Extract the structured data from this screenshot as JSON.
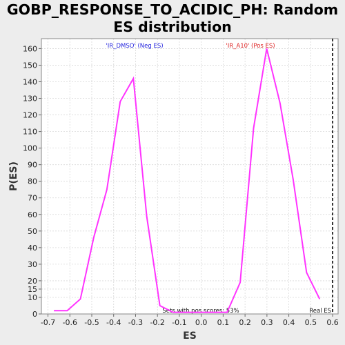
{
  "chart_data": {
    "type": "line",
    "title": "GOBP_RESPONSE_TO_ACIDIC_PH: Random ES distribution",
    "xlabel": "ES",
    "ylabel": "P(ES)",
    "xlim": [
      -0.73,
      0.625
    ],
    "ylim": [
      0,
      166
    ],
    "x_ticks": [
      "-0.7",
      "-0.6",
      "-0.5",
      "-0.4",
      "-0.3",
      "-0.2",
      "-0.1",
      "0.0",
      "0.1",
      "0.2",
      "0.3",
      "0.4",
      "0.5",
      "0.6"
    ],
    "y_ticks": [
      "0",
      "10",
      "15",
      "20",
      "30",
      "40",
      "50",
      "60",
      "70",
      "80",
      "90",
      "100",
      "110",
      "120",
      "130",
      "140",
      "150",
      "160"
    ],
    "grid": true,
    "series": [
      {
        "color": "#ff33ff",
        "x": [
          -0.673,
          -0.612,
          -0.552,
          -0.491,
          -0.431,
          -0.37,
          -0.31,
          -0.249,
          -0.189,
          -0.128,
          0.118,
          0.178,
          0.239,
          0.299,
          0.36,
          0.42,
          0.481,
          0.541
        ],
        "y": [
          2,
          2,
          9,
          46,
          75,
          128,
          142,
          59,
          5,
          1,
          1,
          19,
          112,
          160,
          127,
          81,
          25,
          9
        ]
      }
    ],
    "annotations": {
      "neg": {
        "text": "'IR_DMSO' (Neg ES)",
        "color": "#2222dd"
      },
      "pos": {
        "text": "'IR_A10' (Pos ES)",
        "color": "#dd2222"
      },
      "sets": {
        "text": "Sets with pos scores: 53%"
      },
      "real": {
        "text": "Real ES",
        "x": 0.6
      }
    },
    "colors": {
      "line": "#ff33ff",
      "background": "#ffffff",
      "grid": "#d8d8d8"
    }
  }
}
